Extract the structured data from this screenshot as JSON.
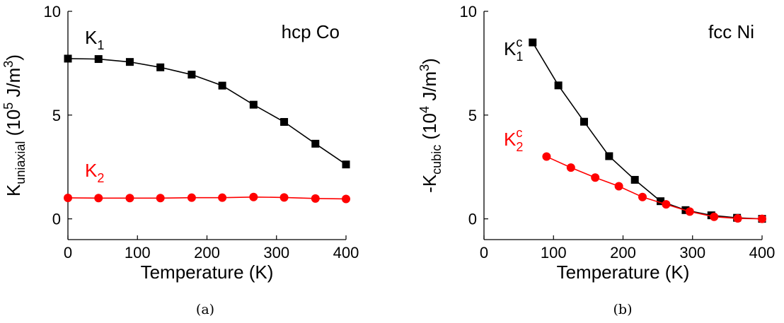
{
  "chart_data": [
    {
      "type": "line",
      "panel_label": "(a)",
      "annotation": "hcp Co",
      "xlabel": "Temperature (K)",
      "ylabel": {
        "base": "K",
        "sub": "uniaxial",
        "mid": " (10",
        "sup": "5",
        "unit": " J/m",
        "unit_sup": "3",
        "close": ")"
      },
      "xlim": [
        0,
        400
      ],
      "ylim": [
        -1,
        10
      ],
      "xticks": [
        0,
        100,
        200,
        300,
        400
      ],
      "yticks": [
        0,
        5,
        10
      ],
      "series": [
        {
          "name": "K1",
          "label": {
            "base": "K",
            "sub": "1"
          },
          "color": "#000000",
          "marker": "square",
          "x": [
            0,
            44,
            89,
            133,
            178,
            222,
            267,
            311,
            356,
            400
          ],
          "y": [
            7.72,
            7.7,
            7.56,
            7.3,
            6.95,
            6.42,
            5.5,
            4.67,
            3.62,
            2.62
          ]
        },
        {
          "name": "K2",
          "label": {
            "base": "K",
            "sub": "2"
          },
          "color": "#ff0000",
          "marker": "circle",
          "x": [
            0,
            44,
            89,
            133,
            178,
            222,
            267,
            311,
            356,
            400
          ],
          "y": [
            1.01,
            1.0,
            1.0,
            1.0,
            1.02,
            1.02,
            1.05,
            1.03,
            0.98,
            0.96
          ]
        }
      ]
    },
    {
      "type": "line",
      "panel_label": "(b)",
      "annotation": "fcc Ni",
      "xlabel": "Temperature (K)",
      "ylabel": {
        "base": "-K",
        "sub": "cubic",
        "mid": " (10",
        "sup": "4",
        "unit": " J/m",
        "unit_sup": "3",
        "close": ")"
      },
      "xlim": [
        0,
        400
      ],
      "ylim": [
        -1,
        10
      ],
      "xticks": [
        0,
        100,
        200,
        300,
        400
      ],
      "yticks": [
        0,
        5,
        10
      ],
      "series": [
        {
          "name": "K1c",
          "label": {
            "base": "K",
            "sub": "1",
            "sup": "c"
          },
          "color": "#000000",
          "marker": "square",
          "x": [
            70,
            107,
            144,
            180,
            217,
            254,
            290,
            327,
            364,
            400
          ],
          "y": [
            8.5,
            6.43,
            4.68,
            3.02,
            1.88,
            0.85,
            0.42,
            0.17,
            0.05,
            0.0
          ]
        },
        {
          "name": "K2c",
          "label": {
            "base": "K",
            "sub": "2",
            "sup": "c"
          },
          "color": "#ff0000",
          "marker": "circle",
          "x": [
            90,
            125,
            160,
            194,
            228,
            262,
            296,
            331,
            365,
            400
          ],
          "y": [
            3.0,
            2.47,
            1.99,
            1.57,
            1.05,
            0.7,
            0.35,
            0.1,
            0.02,
            0.0
          ]
        }
      ]
    }
  ]
}
